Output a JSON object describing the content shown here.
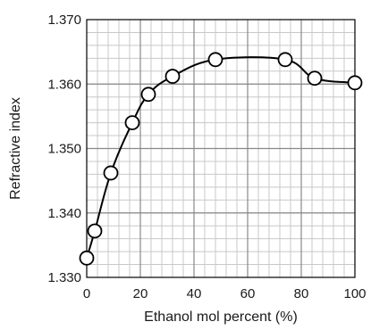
{
  "chart_data": {
    "type": "scatter",
    "xlabel": "Ethanol mol percent (%)",
    "ylabel": "Refractive index",
    "xlim": [
      0,
      100
    ],
    "ylim": [
      1.33,
      1.37
    ],
    "grid": true,
    "x_ticks": [
      "0",
      "20",
      "40",
      "60",
      "80",
      "100"
    ],
    "y_ticks": [
      "1.330",
      "1.340",
      "1.350",
      "1.360",
      "1.370"
    ],
    "series": [
      {
        "marker": "open-circle",
        "line": "smooth",
        "color": "#000000",
        "x": [
          0,
          3,
          9,
          17,
          23,
          32,
          48,
          74,
          85,
          100
        ],
        "y": [
          1.333,
          1.3372,
          1.3462,
          1.354,
          1.3584,
          1.3612,
          1.3638,
          1.3638,
          1.3609,
          1.3602
        ]
      }
    ]
  }
}
